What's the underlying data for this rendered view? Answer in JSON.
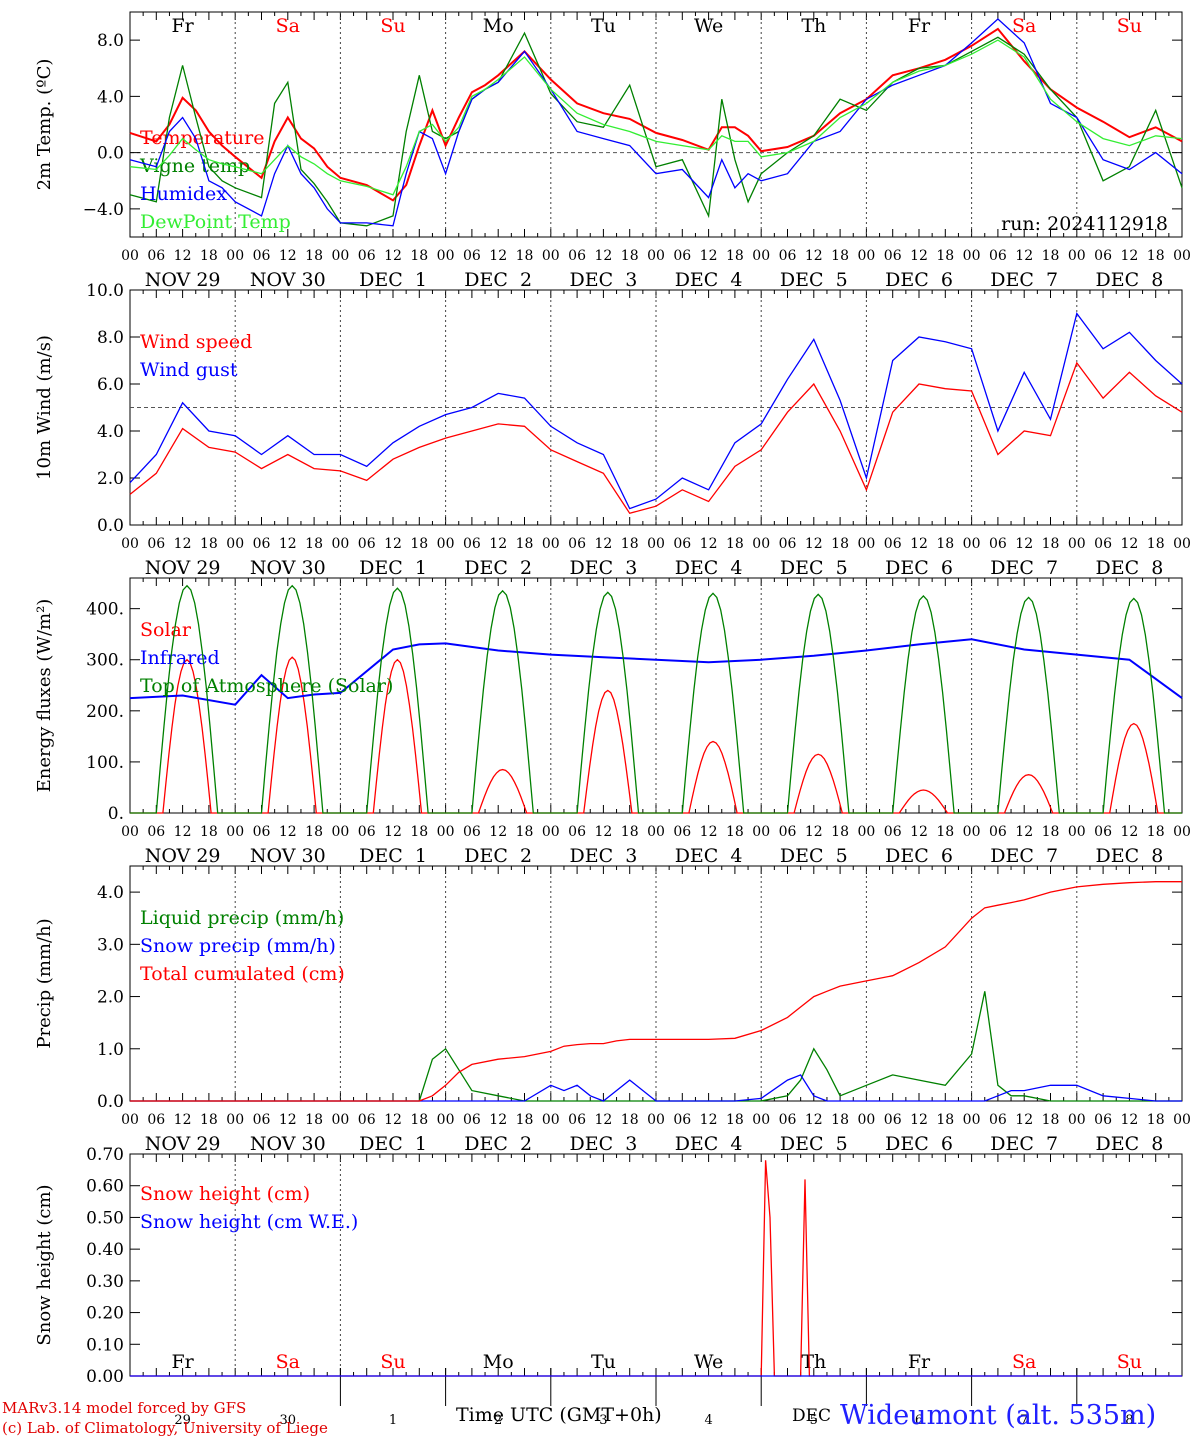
{
  "footer": {
    "model": "MARv3.14 model forced by GFS",
    "credit": "(c) Lab. of Climatology, University of Liege",
    "time_label": "Time UTC (GMT+0h)",
    "month": "DEC",
    "station": "Wideumont (alt. 535m)"
  },
  "axis": {
    "hour_ticks": [
      "00",
      "06",
      "12",
      "18"
    ],
    "date_labels": [
      "NOV 29",
      "NOV 30",
      "DEC  1",
      "DEC  2",
      "DEC  3",
      "DEC  4",
      "DEC  5",
      "DEC  6",
      "DEC  7",
      "DEC  8"
    ],
    "weekdays": [
      "Fr",
      "Sa",
      "Su",
      "Mo",
      "Tu",
      "We",
      "Th",
      "Fr",
      "Sa",
      "Su"
    ],
    "weekday_colors": [
      "#000000",
      "#ff0000",
      "#ff0000",
      "#000000",
      "#000000",
      "#000000",
      "#000000",
      "#000000",
      "#ff0000",
      "#ff0000"
    ],
    "day_numbers": [
      "29",
      "30",
      "1",
      "2",
      "3",
      "4",
      "5",
      "6",
      "7",
      "8"
    ],
    "x_unit": "hours since 2024-11-29 00 UTC",
    "x_range": [
      0,
      240
    ]
  },
  "colors": {
    "red": "#ff0000",
    "green": "#008000",
    "blue": "#0000ff",
    "light_green": "#33ee33",
    "grid": "#555555"
  },
  "chart_data": [
    {
      "type": "line",
      "id": "temp",
      "ylabel": "2m Temp. (ºC)",
      "ylim": [
        -6,
        10
      ],
      "yticks": [
        -4,
        0,
        4,
        8
      ],
      "ytick_labels": [
        "−4.0",
        "0.0",
        "4.0",
        "8.0"
      ],
      "ref_line": 0,
      "annotation": "run: 2024112918",
      "x": [
        0,
        6,
        9,
        12,
        15,
        18,
        21,
        24,
        30,
        33,
        36,
        39,
        42,
        45,
        48,
        54,
        60,
        63,
        66,
        69,
        72,
        75,
        78,
        81,
        84,
        90,
        96,
        102,
        108,
        114,
        120,
        126,
        132,
        135,
        138,
        141,
        144,
        150,
        156,
        162,
        168,
        174,
        180,
        186,
        192,
        198,
        204,
        210,
        216,
        222,
        228,
        234,
        240
      ],
      "series": [
        {
          "name": "Temperature",
          "color": "#ff0000",
          "values": [
            1.4,
            0.8,
            2.0,
            3.9,
            3.0,
            1.5,
            0.5,
            -0.3,
            -1.8,
            0.8,
            2.5,
            1.0,
            0.3,
            -1.0,
            -1.8,
            -2.3,
            -3.4,
            -2.3,
            0.5,
            3.0,
            0.5,
            2.5,
            4.3,
            4.8,
            5.5,
            7.2,
            5.2,
            3.5,
            2.8,
            2.4,
            1.4,
            0.9,
            0.2,
            1.8,
            1.8,
            1.2,
            0.1,
            0.4,
            1.2,
            2.8,
            3.8,
            5.5,
            6.0,
            6.6,
            7.6,
            8.8,
            6.5,
            4.5,
            3.2,
            2.2,
            1.1,
            1.8,
            0.8
          ]
        },
        {
          "name": "Vigne temp",
          "color": "#008000",
          "values": [
            -3.0,
            -3.5,
            2.5,
            6.2,
            2.5,
            -1.0,
            -2.0,
            -2.5,
            -3.2,
            3.5,
            5.0,
            -1.2,
            -2.2,
            -3.5,
            -5.0,
            -5.2,
            -4.5,
            1.5,
            5.5,
            1.5,
            1.0,
            1.5,
            3.8,
            4.5,
            5.0,
            8.5,
            4.2,
            2.2,
            1.8,
            4.8,
            -1.0,
            -0.5,
            -4.5,
            3.8,
            -0.5,
            -3.5,
            -1.5,
            0.0,
            1.2,
            3.8,
            3.0,
            5.0,
            6.0,
            6.2,
            7.2,
            8.2,
            7.0,
            4.5,
            2.5,
            -2.0,
            -1.0,
            3.0,
            -2.5
          ]
        },
        {
          "name": "Humidex",
          "color": "#0000ff",
          "values": [
            -0.5,
            -1.0,
            1.5,
            2.5,
            1.0,
            -2.0,
            -2.5,
            -3.5,
            -4.5,
            -1.5,
            0.5,
            -1.5,
            -2.5,
            -4.0,
            -5.0,
            -5.0,
            -5.2,
            -1.5,
            1.5,
            1.0,
            -1.5,
            1.5,
            3.8,
            4.5,
            5.0,
            7.2,
            4.5,
            1.5,
            1.0,
            0.5,
            -1.5,
            -1.2,
            -3.2,
            -0.5,
            -2.5,
            -1.5,
            -2.0,
            -1.5,
            0.8,
            1.5,
            3.8,
            4.8,
            5.5,
            6.2,
            7.8,
            9.5,
            7.8,
            3.5,
            2.5,
            -0.5,
            -1.2,
            0.0,
            -1.5
          ]
        },
        {
          "name": "DewPoint Temp",
          "color": "#33ee33",
          "values": [
            -1.0,
            -1.2,
            -0.2,
            1.0,
            0.2,
            -0.5,
            -0.8,
            -1.0,
            -1.5,
            -0.5,
            0.5,
            -0.3,
            -0.8,
            -1.5,
            -2.0,
            -2.4,
            -3.0,
            -1.0,
            1.5,
            2.0,
            0.8,
            1.8,
            4.0,
            4.5,
            5.2,
            6.8,
            4.5,
            2.8,
            2.0,
            1.5,
            0.8,
            0.5,
            0.2,
            1.2,
            0.8,
            0.8,
            -0.3,
            0.0,
            0.8,
            2.5,
            3.5,
            5.0,
            5.8,
            6.2,
            7.0,
            8.0,
            6.8,
            3.8,
            2.2,
            1.0,
            0.5,
            1.2,
            1.0
          ]
        }
      ]
    },
    {
      "type": "line",
      "id": "wind",
      "ylabel": "10m Wind (m/s)",
      "ylim": [
        0,
        10
      ],
      "yticks": [
        0,
        2,
        4,
        6,
        8,
        10
      ],
      "ytick_labels": [
        "0.0",
        "2.0",
        "4.0",
        "6.0",
        "8.0",
        "10.0"
      ],
      "ref_line": 5,
      "x": [
        0,
        6,
        12,
        18,
        24,
        30,
        36,
        42,
        48,
        54,
        60,
        66,
        72,
        78,
        84,
        90,
        96,
        102,
        108,
        114,
        120,
        126,
        132,
        138,
        144,
        150,
        156,
        162,
        168,
        174,
        180,
        186,
        192,
        198,
        204,
        210,
        216,
        222,
        228,
        234,
        240
      ],
      "series": [
        {
          "name": "Wind speed",
          "color": "#ff0000",
          "values": [
            1.3,
            2.2,
            4.1,
            3.3,
            3.1,
            2.4,
            3.0,
            2.4,
            2.3,
            1.9,
            2.8,
            3.3,
            3.7,
            4.0,
            4.3,
            4.2,
            3.2,
            2.7,
            2.2,
            0.5,
            0.8,
            1.5,
            1.0,
            2.5,
            3.2,
            4.8,
            6.0,
            4.0,
            1.5,
            4.8,
            6.0,
            5.8,
            5.7,
            3.0,
            4.0,
            3.8,
            6.9,
            5.4,
            6.5,
            5.5,
            4.8
          ]
        },
        {
          "name": "Wind gust",
          "color": "#0000ff",
          "values": [
            1.8,
            3.0,
            5.2,
            4.0,
            3.8,
            3.0,
            3.8,
            3.0,
            3.0,
            2.5,
            3.5,
            4.2,
            4.7,
            5.0,
            5.6,
            5.4,
            4.2,
            3.5,
            3.0,
            0.7,
            1.1,
            2.0,
            1.5,
            3.5,
            4.3,
            6.2,
            7.9,
            5.3,
            2.0,
            7.0,
            8.0,
            7.8,
            7.5,
            4.0,
            6.5,
            4.5,
            9.0,
            7.5,
            8.2,
            7.0,
            6.0
          ]
        }
      ]
    },
    {
      "type": "line",
      "id": "energy",
      "ylabel": "Energy fluxes (W/m²)",
      "ylim": [
        0,
        460
      ],
      "yticks": [
        0,
        100,
        200,
        300,
        400
      ],
      "ytick_labels": [
        "0.",
        "100.",
        "200.",
        "300.",
        "400."
      ],
      "series": [
        {
          "name": "Solar",
          "color": "#ff0000",
          "peaks": [
            300,
            305,
            300,
            85,
            240,
            140,
            115,
            45,
            75,
            175
          ]
        },
        {
          "name": "Infrared",
          "color": "#0000ff",
          "x": [
            0,
            12,
            24,
            30,
            36,
            42,
            48,
            60,
            66,
            72,
            84,
            96,
            108,
            120,
            132,
            144,
            156,
            168,
            180,
            192,
            204,
            216,
            228,
            240
          ],
          "values": [
            225,
            230,
            212,
            270,
            225,
            232,
            235,
            320,
            330,
            332,
            318,
            310,
            305,
            300,
            295,
            300,
            308,
            318,
            330,
            340,
            320,
            310,
            300,
            225
          ]
        },
        {
          "name": "Top of Atmosphere (Solar)",
          "color": "#008000",
          "peaks": [
            445,
            445,
            440,
            435,
            432,
            430,
            428,
            425,
            422,
            420
          ]
        }
      ]
    },
    {
      "type": "line",
      "id": "precip",
      "ylabel": "Precip (mm/h)",
      "ylim": [
        0,
        4.5
      ],
      "yticks": [
        0,
        1,
        2,
        3,
        4
      ],
      "ytick_labels": [
        "0.0",
        "1.0",
        "2.0",
        "3.0",
        "4.0"
      ],
      "x": [
        0,
        48,
        66,
        69,
        72,
        75,
        78,
        84,
        90,
        96,
        99,
        102,
        105,
        108,
        111,
        114,
        120,
        126,
        132,
        138,
        144,
        150,
        153,
        156,
        159,
        162,
        168,
        174,
        180,
        186,
        192,
        195,
        198,
        201,
        204,
        210,
        216,
        222,
        228,
        234,
        240
      ],
      "series": [
        {
          "name": "Liquid precip (mm/h)",
          "color": "#008000",
          "values": [
            0,
            0,
            0,
            0.8,
            1.0,
            0.6,
            0.2,
            0.1,
            0,
            0,
            0,
            0,
            0,
            0,
            0,
            0,
            0,
            0,
            0,
            0,
            0,
            0.1,
            0.4,
            1.0,
            0.6,
            0.1,
            0.3,
            0.5,
            0.4,
            0.3,
            0.9,
            2.1,
            0.3,
            0.1,
            0.1,
            0,
            0,
            0,
            0,
            0,
            0
          ]
        },
        {
          "name": "Snow precip (mm/h)",
          "color": "#0000ff",
          "values": [
            0,
            0,
            0,
            0,
            0,
            0,
            0,
            0,
            0,
            0.3,
            0.2,
            0.3,
            0.1,
            0,
            0.2,
            0.4,
            0,
            0,
            0,
            0,
            0.05,
            0.4,
            0.5,
            0.1,
            0,
            0,
            0,
            0,
            0,
            0,
            0,
            0,
            0.1,
            0.2,
            0.2,
            0.3,
            0.3,
            0.1,
            0.05,
            0,
            0
          ]
        },
        {
          "name": "Total cumulated (cm)",
          "color": "#ff0000",
          "values": [
            0,
            0,
            0,
            0.1,
            0.3,
            0.55,
            0.7,
            0.8,
            0.85,
            0.95,
            1.05,
            1.08,
            1.1,
            1.1,
            1.15,
            1.18,
            1.18,
            1.18,
            1.18,
            1.2,
            1.35,
            1.6,
            1.8,
            2.0,
            2.1,
            2.2,
            2.3,
            2.4,
            2.65,
            2.95,
            3.5,
            3.7,
            3.75,
            3.8,
            3.85,
            4.0,
            4.1,
            4.15,
            4.18,
            4.2,
            4.2
          ]
        }
      ]
    },
    {
      "type": "line",
      "id": "snow",
      "ylabel": "Snow height (cm)",
      "ylim": [
        0,
        0.7
      ],
      "yticks": [
        0,
        0.1,
        0.2,
        0.3,
        0.4,
        0.5,
        0.6,
        0.7
      ],
      "ytick_labels": [
        "0.00",
        "0.10",
        "0.20",
        "0.30",
        "0.40",
        "0.50",
        "0.60",
        "0.70"
      ],
      "x": [
        0,
        144,
        145,
        146,
        147,
        153,
        154,
        155,
        240
      ],
      "series": [
        {
          "name": "Snow height (cm)",
          "color": "#ff0000",
          "values": [
            0,
            0,
            0.68,
            0.5,
            0,
            0,
            0.62,
            0,
            0
          ]
        },
        {
          "name": "Snow height (cm W.E.)",
          "color": "#0000ff",
          "values": [
            0,
            0,
            0,
            0,
            0,
            0,
            0,
            0,
            0
          ]
        }
      ]
    }
  ]
}
